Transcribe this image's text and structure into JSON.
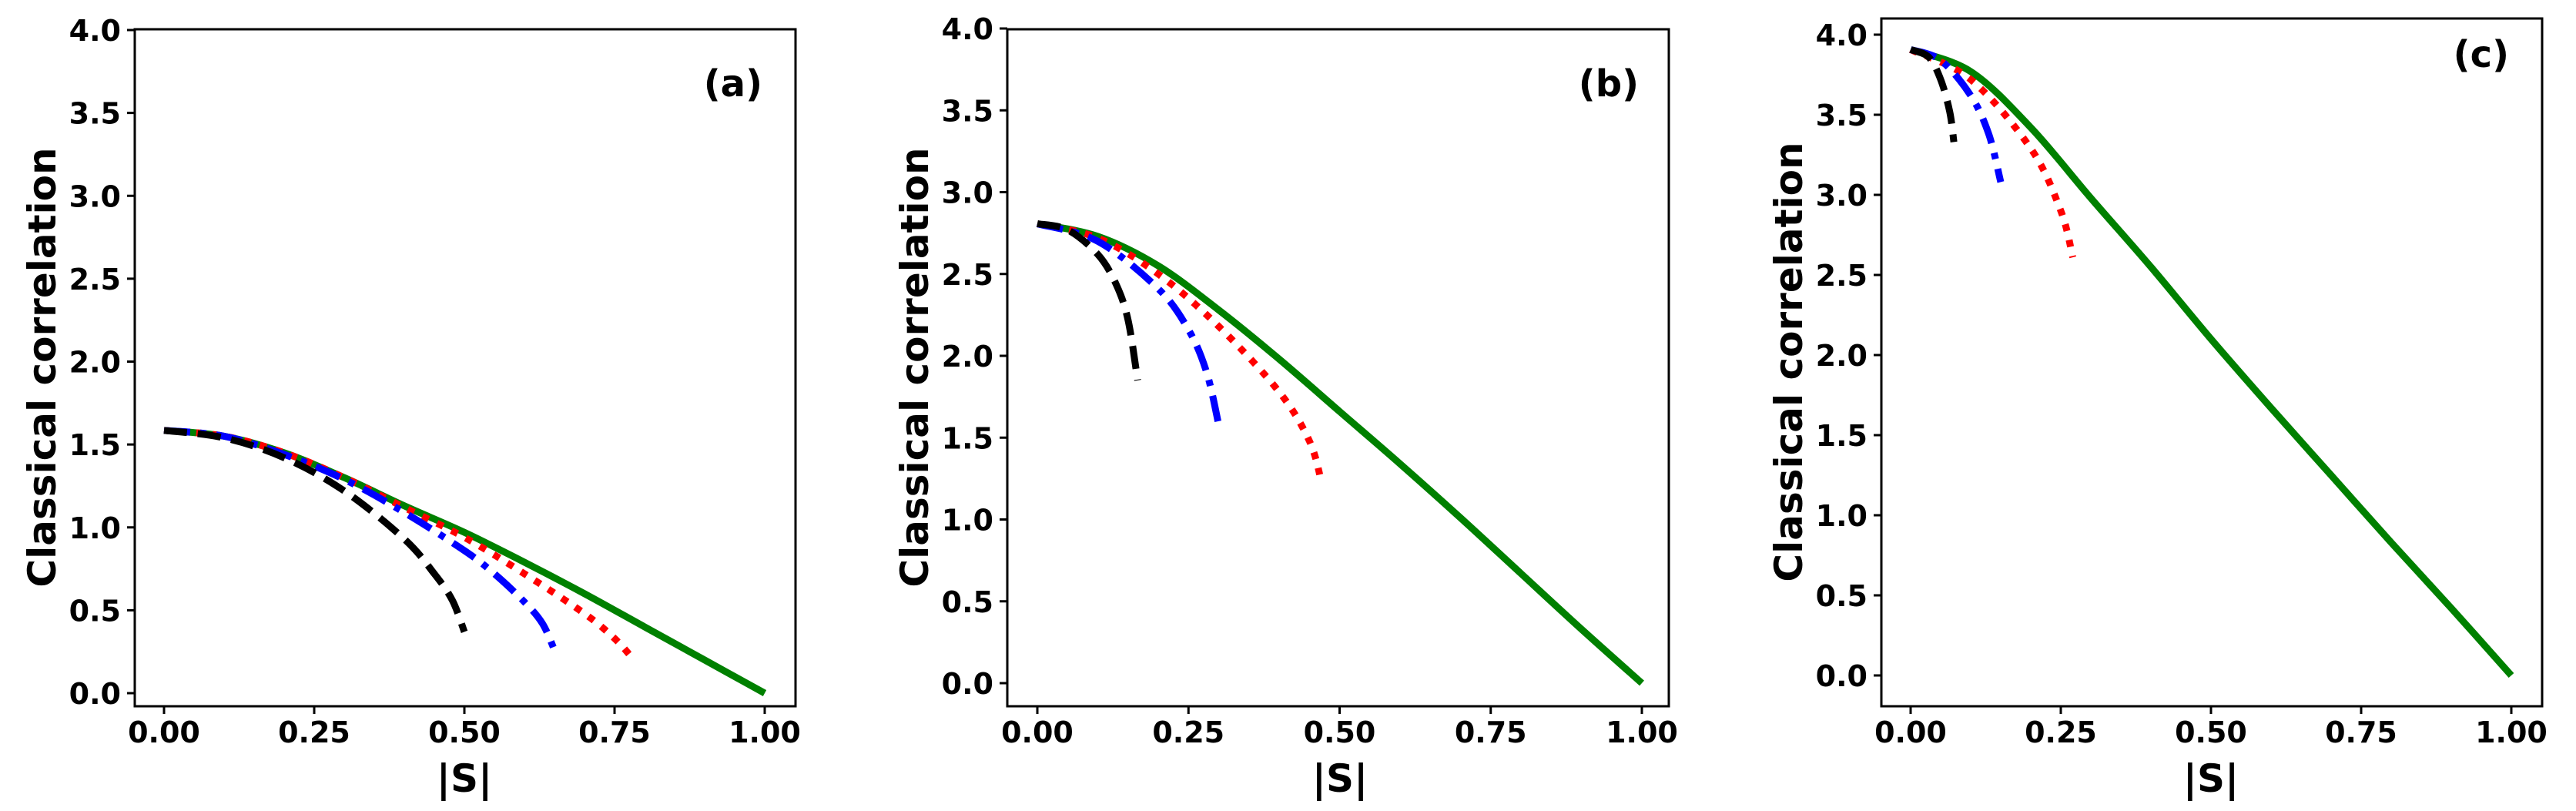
{
  "figure": {
    "panels": [
      {
        "tag": "(a)",
        "xlabel": "|S|",
        "ylabel": "Classical correlation"
      },
      {
        "tag": "(b)",
        "xlabel": "|S|",
        "ylabel": "Classical correlation"
      },
      {
        "tag": "(c)",
        "xlabel": "|S|",
        "ylabel": "Classical correlation"
      }
    ]
  },
  "chart_data": [
    {
      "type": "line",
      "title": "(a)",
      "xlabel": "|S|",
      "ylabel": "Classical correlation",
      "xlim": [
        -0.05,
        1.05
      ],
      "ylim": [
        -0.08,
        4.0
      ],
      "xticks": [
        "0.00",
        "0.25",
        "0.50",
        "0.75",
        "1.00"
      ],
      "yticks": [
        "0.0",
        "0.5",
        "1.0",
        "1.5",
        "2.0",
        "2.5",
        "3.0",
        "3.5",
        "4.0"
      ],
      "grid": false,
      "legend": null,
      "series": [
        {
          "name": "green-solid",
          "color": "#008000",
          "style": "solid",
          "x": [
            0,
            0.1,
            0.2,
            0.3,
            0.4,
            0.5,
            0.6,
            0.7,
            0.8,
            0.9,
            1.0
          ],
          "y": [
            1.585,
            1.55,
            1.45,
            1.3,
            1.13,
            0.97,
            0.79,
            0.6,
            0.4,
            0.2,
            0.0
          ]
        },
        {
          "name": "red-dotted",
          "color": "#ff0000",
          "style": "dotted",
          "x": [
            0,
            0.1,
            0.2,
            0.3,
            0.4,
            0.5,
            0.6,
            0.7,
            0.75,
            0.78
          ],
          "y": [
            1.585,
            1.55,
            1.45,
            1.3,
            1.12,
            0.94,
            0.72,
            0.48,
            0.33,
            0.21
          ]
        },
        {
          "name": "blue-dashdot",
          "color": "#0000ff",
          "style": "dashdot",
          "x": [
            0,
            0.1,
            0.2,
            0.3,
            0.4,
            0.5,
            0.55,
            0.6,
            0.63,
            0.65
          ],
          "y": [
            1.585,
            1.55,
            1.44,
            1.29,
            1.09,
            0.86,
            0.72,
            0.55,
            0.42,
            0.26
          ]
        },
        {
          "name": "black-dashed",
          "color": "#000000",
          "style": "dashed",
          "x": [
            0,
            0.1,
            0.2,
            0.3,
            0.4,
            0.45,
            0.48,
            0.5
          ],
          "y": [
            1.585,
            1.54,
            1.42,
            1.22,
            0.93,
            0.72,
            0.56,
            0.37
          ]
        }
      ]
    },
    {
      "type": "line",
      "title": "(b)",
      "xlabel": "|S|",
      "ylabel": "Classical correlation",
      "xlim": [
        -0.05,
        1.05
      ],
      "ylim": [
        -0.14,
        4.0
      ],
      "xticks": [
        "0.00",
        "0.25",
        "0.50",
        "0.75",
        "1.00"
      ],
      "yticks": [
        "0.0",
        "0.5",
        "1.0",
        "1.5",
        "2.0",
        "2.5",
        "3.0",
        "3.5",
        "4.0"
      ],
      "grid": false,
      "legend": null,
      "series": [
        {
          "name": "green-solid",
          "color": "#008000",
          "style": "solid",
          "x": [
            0,
            0.1,
            0.2,
            0.3,
            0.4,
            0.5,
            0.6,
            0.7,
            0.8,
            0.9,
            1.0
          ],
          "y": [
            2.807,
            2.73,
            2.55,
            2.28,
            1.98,
            1.66,
            1.34,
            1.01,
            0.67,
            0.33,
            0.0
          ]
        },
        {
          "name": "red-dotted",
          "color": "#ff0000",
          "style": "dotted",
          "x": [
            0,
            0.1,
            0.2,
            0.3,
            0.4,
            0.45,
            0.47
          ],
          "y": [
            2.807,
            2.72,
            2.5,
            2.18,
            1.78,
            1.48,
            1.23
          ]
        },
        {
          "name": "blue-dashdot",
          "color": "#0000ff",
          "style": "dashdot",
          "x": [
            0,
            0.1,
            0.2,
            0.25,
            0.28,
            0.3
          ],
          "y": [
            2.807,
            2.7,
            2.41,
            2.16,
            1.9,
            1.58
          ]
        },
        {
          "name": "black-dashed",
          "color": "#000000",
          "style": "dashed",
          "x": [
            0,
            0.05,
            0.1,
            0.13,
            0.15,
            0.166
          ],
          "y": [
            2.807,
            2.77,
            2.62,
            2.44,
            2.22,
            1.85
          ]
        }
      ]
    },
    {
      "type": "line",
      "title": "(c)",
      "xlabel": "|S|",
      "ylabel": "Classical correlation",
      "xlim": [
        -0.05,
        1.05
      ],
      "ylim": [
        -0.19,
        4.1
      ],
      "xticks": [
        "0.00",
        "0.25",
        "0.50",
        "0.75",
        "1.00"
      ],
      "yticks": [
        "0.0",
        "0.5",
        "1.0",
        "1.5",
        "2.0",
        "2.5",
        "3.0",
        "3.5",
        "4.0"
      ],
      "grid": false,
      "legend": null,
      "series": [
        {
          "name": "green-solid",
          "color": "#008000",
          "style": "solid",
          "x": [
            0,
            0.1,
            0.2,
            0.3,
            0.4,
            0.5,
            0.6,
            0.7,
            0.8,
            0.9,
            1.0
          ],
          "y": [
            3.907,
            3.77,
            3.42,
            2.98,
            2.55,
            2.1,
            1.67,
            1.25,
            0.83,
            0.42,
            0.0
          ]
        },
        {
          "name": "red-dotted",
          "color": "#ff0000",
          "style": "dotted",
          "x": [
            0,
            0.1,
            0.2,
            0.25,
            0.27
          ],
          "y": [
            3.907,
            3.72,
            3.29,
            2.9,
            2.61
          ]
        },
        {
          "name": "blue-dashdot",
          "color": "#0000ff",
          "style": "dashdot",
          "x": [
            0,
            0.05,
            0.1,
            0.13,
            0.15
          ],
          "y": [
            3.907,
            3.84,
            3.62,
            3.38,
            3.08
          ]
        },
        {
          "name": "black-dashed",
          "color": "#000000",
          "style": "dashed",
          "x": [
            0,
            0.03,
            0.05,
            0.065,
            0.072
          ],
          "y": [
            3.907,
            3.86,
            3.72,
            3.52,
            3.33
          ]
        }
      ]
    }
  ]
}
